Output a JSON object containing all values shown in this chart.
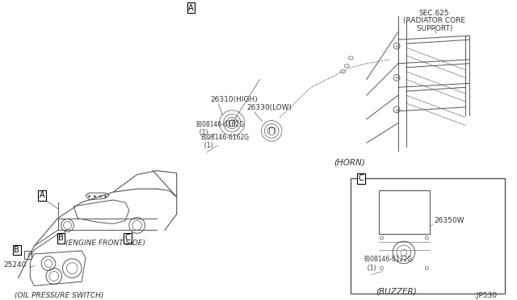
{
  "bg_color": "#ffffff",
  "line_color": "#555555",
  "text_color": "#333333",
  "labels": {
    "engine_front_side": "(ENGINE FRONT SIDE)",
    "oil_pressure_switch": "(OIL PRESSURE SWITCH)",
    "sec625": "SEC.625",
    "radiator_core_support": "(RADIATOR CORE\n SUPPORT)",
    "horn": "(HORN)",
    "buzzer": "(BUZZER)",
    "part_26310": "26310(HIGH)",
    "part_26330": "26330(LOW)",
    "part_25240": "25240",
    "part_26350W": "26350W",
    "bolt_6162G_1": "B)08146-6162G\n  (1)",
    "bolt_6162G_2": "B)08146-6162G\n  (1)",
    "bolt_6122G": "B)08146-6122G\n  (1)",
    "jp530": ".JP530"
  },
  "font_size_small": 5.5,
  "font_size_label": 6.5,
  "font_size_box": 7
}
